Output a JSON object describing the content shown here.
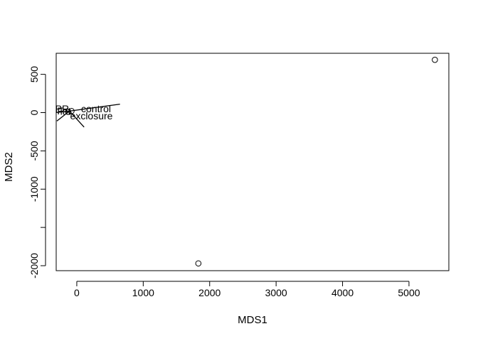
{
  "chart_data": {
    "type": "scatter",
    "title": "",
    "xlabel": "MDS1",
    "ylabel": "MDS2",
    "xlim": [
      -310,
      5600
    ],
    "ylim": [
      -2065,
      775
    ],
    "x_ticks": [
      0,
      1000,
      2000,
      3000,
      4000,
      5000
    ],
    "y_ticks": [
      500,
      0,
      -500,
      -1000,
      -1500,
      -2000
    ],
    "x_tick_labels": [
      "0",
      "1000",
      "2000",
      "3000",
      "4000",
      "5000"
    ],
    "y_tick_labels": [
      "500",
      "0",
      "-500",
      "-1000",
      "",
      "-2000"
    ],
    "points": [
      {
        "x": 5390,
        "y": 690
      },
      {
        "x": 1830,
        "y": -1970
      },
      {
        "x": -80,
        "y": 20
      },
      {
        "x": -130,
        "y": 10
      }
    ],
    "vectors": [
      {
        "label": "control",
        "to": [
          650,
          110
        ],
        "label_at": [
          290,
          50
        ]
      },
      {
        "label": "exclosure",
        "to": [
          110,
          -190
        ],
        "label_at": [
          220,
          -40
        ]
      },
      {
        "label": "PR",
        "to": [
          -310,
          0
        ],
        "label_at": [
          -220,
          50
        ]
      },
      {
        "label": "",
        "to": [
          -300,
          -110
        ],
        "label_at": null
      }
    ],
    "overlapping_labels": [
      {
        "text": "lat",
        "at": [
          -170,
          20
        ]
      },
      {
        "text": "F",
        "at": [
          -250,
          25
        ]
      }
    ],
    "vector_origin": [
      -110,
      20
    ],
    "grid": false,
    "legend": "none"
  }
}
